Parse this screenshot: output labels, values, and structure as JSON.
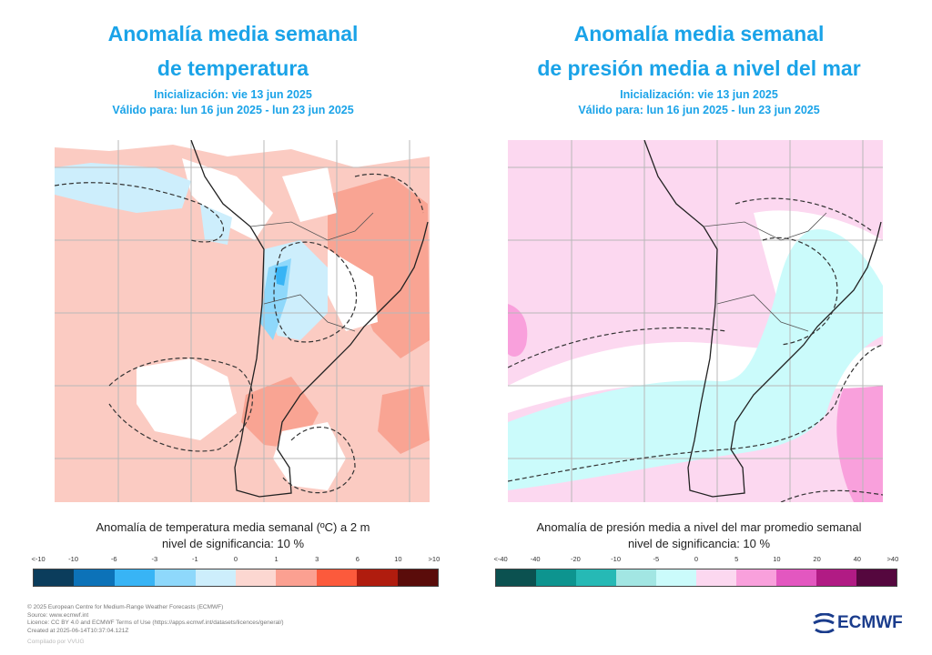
{
  "left": {
    "title_line1": "Anomalía media semanal",
    "title_line2": "de temperatura",
    "init": "Inicialización: vie 13 jun 2025",
    "valid": "Válido para: lun 16 jun 2025 - lun 23 jun 2025",
    "caption_line1": "Anomalía de temperatura media semanal (ºC) a 2 m",
    "caption_line2": "nivel de significancia: 10 %",
    "legend_ticks": [
      "<-10",
      "-10",
      "-6",
      "-3",
      "-1",
      "0",
      "1",
      "3",
      "6",
      "10",
      ">10"
    ],
    "legend_colors": [
      "#0b3d5c",
      "#0c72b8",
      "#38b4f5",
      "#8ed8fb",
      "#cdeefc",
      "#fcd7d1",
      "#fba091",
      "#fc5a3c",
      "#b01c0e",
      "#5a0c0a"
    ]
  },
  "right": {
    "title_line1": "Anomalía media semanal",
    "title_line2": "de presión media a nivel del mar",
    "init": "Inicialización: vie 13 jun 2025",
    "valid": "Válido para: lun 16 jun 2025 - lun 23 jun 2025",
    "caption_line1": "Anomalía de presión media a nivel del mar promedio semanal",
    "caption_line2": "nivel de significancia: 10 %",
    "legend_ticks": [
      "<-40",
      "-40",
      "-20",
      "-10",
      "-5",
      "0",
      "5",
      "10",
      "20",
      "40",
      ">40"
    ],
    "legend_colors": [
      "#0b5150",
      "#0d948f",
      "#26b9b5",
      "#a2e6e3",
      "#cbfbfb",
      "#fcd8f0",
      "#f9a0dc",
      "#e357c0",
      "#b11b84",
      "#55073e"
    ]
  },
  "footer": {
    "line1": "© 2025 European Centre for Medium-Range Weather Forecasts (ECMWF)",
    "line2": "Source: www.ecmwf.int",
    "line3": "Licence: CC BY 4.0 and ECMWF Terms of Use (https://apps.ecmwf.int/datasets/licences/general/)",
    "line4": "Created at 2025-06-14T10:37:04.121Z",
    "compiled": "Compilado por VVUG"
  },
  "logo_text": "ECMWF",
  "colors": {
    "title": "#1aa3e8",
    "temp_base": "#fbcbc2",
    "temp_warm": "#f9a493",
    "temp_cold": "#8ed8fb",
    "pres_base": "#fcd8f0",
    "pres_low": "#cbfbfb"
  }
}
